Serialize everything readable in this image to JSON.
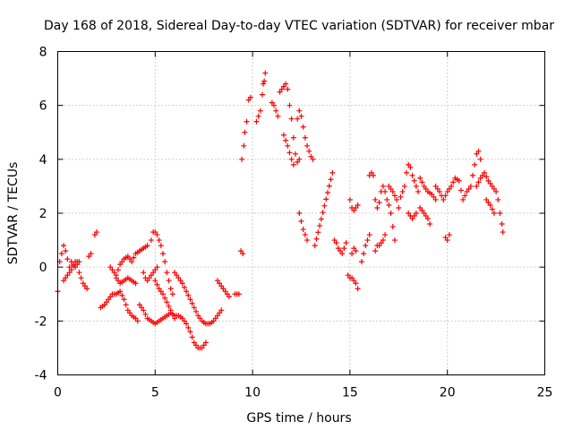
{
  "chart_data": {
    "type": "scatter",
    "title": "Day 168 of 2018, Sidereal Day-to-day VTEC variation (SDTVAR) for receiver mbar",
    "xlabel": "GPS time / hours",
    "ylabel": "SDTVAR / TECUs",
    "xlim": [
      0,
      25
    ],
    "ylim": [
      -4,
      8
    ],
    "xticks": [
      0,
      5,
      10,
      15,
      20,
      25
    ],
    "yticks": [
      -4,
      -2,
      0,
      2,
      4,
      6,
      8
    ],
    "grid": true,
    "marker": "+",
    "color": "#ff0000",
    "series": [
      {
        "name": "SDTVAR",
        "segments": [
          [
            [
              0.0,
              -0.9
            ],
            [
              0.1,
              0.2
            ],
            [
              0.2,
              0.5
            ],
            [
              0.3,
              0.8
            ],
            [
              0.4,
              0.6
            ],
            [
              0.5,
              0.3
            ],
            [
              0.6,
              0.0
            ],
            [
              0.7,
              0.2
            ],
            [
              0.8,
              0.1
            ],
            [
              0.9,
              0.0
            ],
            [
              1.0,
              0.1
            ],
            [
              1.1,
              -0.2
            ],
            [
              1.2,
              -0.4
            ],
            [
              1.3,
              -0.6
            ],
            [
              1.4,
              -0.7
            ],
            [
              1.5,
              -0.8
            ]
          ],
          [
            [
              0.3,
              -0.5
            ],
            [
              0.5,
              -0.3
            ],
            [
              0.7,
              -0.1
            ],
            [
              0.9,
              0.2
            ],
            [
              1.1,
              0.2
            ]
          ],
          [
            [
              1.6,
              0.4
            ],
            [
              1.7,
              0.5
            ]
          ],
          [
            [
              1.9,
              1.2
            ],
            [
              2.0,
              1.3
            ]
          ],
          [
            [
              2.2,
              -1.5
            ],
            [
              2.4,
              -1.4
            ],
            [
              2.6,
              -1.2
            ],
            [
              2.8,
              -1.0
            ],
            [
              3.0,
              -1.0
            ],
            [
              3.2,
              -0.9
            ],
            [
              3.4,
              -1.2
            ],
            [
              3.6,
              -1.6
            ],
            [
              3.8,
              -1.8
            ],
            [
              4.0,
              -1.9
            ],
            [
              4.1,
              -2.0
            ]
          ],
          [
            [
              2.7,
              0.0
            ],
            [
              2.9,
              -0.2
            ],
            [
              3.0,
              -0.4
            ],
            [
              3.2,
              -0.6
            ],
            [
              3.4,
              -0.5
            ],
            [
              3.6,
              -0.4
            ],
            [
              3.8,
              -0.5
            ],
            [
              4.0,
              -0.6
            ]
          ],
          [
            [
              3.0,
              -0.3
            ],
            [
              3.2,
              0.1
            ],
            [
              3.4,
              0.3
            ],
            [
              3.6,
              0.4
            ],
            [
              3.8,
              0.2
            ],
            [
              4.0,
              0.5
            ],
            [
              4.2,
              0.6
            ],
            [
              4.4,
              0.7
            ],
            [
              4.6,
              0.8
            ]
          ],
          [
            [
              4.4,
              -0.2
            ],
            [
              4.5,
              -0.4
            ],
            [
              4.6,
              -0.5
            ],
            [
              4.7,
              -0.4
            ],
            [
              4.8,
              -0.3
            ],
            [
              4.9,
              -0.2
            ],
            [
              5.0,
              -0.1
            ],
            [
              5.1,
              0.0
            ]
          ],
          [
            [
              4.8,
              1.0
            ],
            [
              4.9,
              1.3
            ],
            [
              5.0,
              1.3
            ],
            [
              5.1,
              1.2
            ],
            [
              5.2,
              1.0
            ],
            [
              5.3,
              0.8
            ],
            [
              5.4,
              0.5
            ],
            [
              5.5,
              0.2
            ],
            [
              5.6,
              -0.2
            ],
            [
              5.7,
              -0.5
            ],
            [
              5.8,
              -0.8
            ],
            [
              5.9,
              -1.0
            ]
          ],
          [
            [
              4.2,
              -1.4
            ],
            [
              4.4,
              -1.6
            ],
            [
              4.6,
              -1.9
            ],
            [
              4.8,
              -2.0
            ],
            [
              5.0,
              -2.1
            ],
            [
              5.2,
              -2.0
            ],
            [
              5.4,
              -1.9
            ],
            [
              5.6,
              -1.8
            ],
            [
              5.8,
              -1.7
            ],
            [
              6.0,
              -1.8
            ],
            [
              6.2,
              -1.8
            ],
            [
              6.4,
              -1.9
            ],
            [
              6.6,
              -2.1
            ],
            [
              6.8,
              -2.4
            ],
            [
              7.0,
              -2.8
            ],
            [
              7.2,
              -3.0
            ],
            [
              7.4,
              -3.0
            ],
            [
              7.6,
              -2.8
            ]
          ],
          [
            [
              5.0,
              -0.5
            ],
            [
              5.2,
              -0.8
            ],
            [
              5.4,
              -1.0
            ],
            [
              5.6,
              -1.3
            ],
            [
              5.8,
              -1.6
            ],
            [
              6.0,
              -1.9
            ]
          ],
          [
            [
              6.0,
              -0.2
            ],
            [
              6.2,
              -0.4
            ],
            [
              6.4,
              -0.6
            ],
            [
              6.6,
              -0.9
            ],
            [
              6.8,
              -1.2
            ],
            [
              7.0,
              -1.5
            ],
            [
              7.2,
              -1.8
            ],
            [
              7.4,
              -2.0
            ],
            [
              7.6,
              -2.1
            ],
            [
              7.8,
              -2.1
            ],
            [
              8.0,
              -2.0
            ],
            [
              8.2,
              -1.8
            ],
            [
              8.4,
              -1.6
            ]
          ],
          [
            [
              8.2,
              -0.5
            ],
            [
              8.4,
              -0.7
            ],
            [
              8.6,
              -0.9
            ],
            [
              8.8,
              -1.1
            ]
          ],
          [
            [
              9.1,
              -1.0
            ],
            [
              9.3,
              -1.0
            ]
          ],
          [
            [
              9.4,
              0.6
            ],
            [
              9.5,
              0.5
            ]
          ],
          [
            [
              9.45,
              4.0
            ],
            [
              9.55,
              4.5
            ],
            [
              9.6,
              5.0
            ],
            [
              9.7,
              5.4
            ],
            [
              9.8,
              6.2
            ],
            [
              9.9,
              6.3
            ]
          ],
          [
            [
              10.2,
              5.4
            ],
            [
              10.4,
              5.8
            ],
            [
              10.5,
              6.4
            ],
            [
              10.55,
              6.8
            ],
            [
              10.6,
              6.9
            ],
            [
              10.65,
              7.2
            ]
          ],
          [
            [
              11.0,
              6.1
            ],
            [
              11.1,
              6.0
            ],
            [
              11.2,
              5.8
            ],
            [
              11.3,
              5.6
            ]
          ],
          [
            [
              11.4,
              6.5
            ],
            [
              11.5,
              6.6
            ],
            [
              11.6,
              6.7
            ],
            [
              11.7,
              6.8
            ],
            [
              11.8,
              6.6
            ],
            [
              11.9,
              6.0
            ],
            [
              12.0,
              5.5
            ],
            [
              12.1,
              4.8
            ],
            [
              12.2,
              4.2
            ],
            [
              12.3,
              3.9
            ],
            [
              12.4,
              4.0
            ]
          ],
          [
            [
              11.6,
              4.9
            ],
            [
              11.8,
              4.5
            ],
            [
              12.0,
              4.0
            ],
            [
              12.1,
              3.8
            ]
          ],
          [
            [
              12.3,
              5.5
            ],
            [
              12.4,
              5.8
            ],
            [
              12.5,
              5.6
            ],
            [
              12.6,
              5.2
            ],
            [
              12.7,
              4.8
            ],
            [
              12.8,
              4.5
            ],
            [
              12.9,
              4.3
            ]
          ],
          [
            [
              13.0,
              4.1
            ],
            [
              13.1,
              4.0
            ]
          ],
          [
            [
              12.4,
              2.0
            ],
            [
              12.5,
              1.7
            ],
            [
              12.6,
              1.4
            ],
            [
              12.7,
              1.2
            ],
            [
              12.8,
              1.0
            ]
          ],
          [
            [
              13.2,
              0.8
            ],
            [
              14.1,
              3.5
            ]
          ],
          [
            [
              14.2,
              1.0
            ],
            [
              14.3,
              0.9
            ],
            [
              14.4,
              0.7
            ],
            [
              14.5,
              0.6
            ],
            [
              14.6,
              0.5
            ],
            [
              14.7,
              0.7
            ],
            [
              14.8,
              0.9
            ]
          ],
          [
            [
              14.9,
              -0.3
            ],
            [
              15.0,
              -0.4
            ],
            [
              15.1,
              -0.4
            ],
            [
              15.2,
              -0.5
            ],
            [
              15.3,
              -0.6
            ],
            [
              15.4,
              -0.8
            ]
          ],
          [
            [
              15.0,
              2.5
            ],
            [
              15.1,
              2.2
            ],
            [
              15.2,
              2.1
            ],
            [
              15.3,
              2.2
            ],
            [
              15.4,
              2.3
            ]
          ],
          [
            [
              15.1,
              0.5
            ],
            [
              15.2,
              0.7
            ],
            [
              15.3,
              0.6
            ]
          ],
          [
            [
              15.6,
              0.2
            ],
            [
              15.8,
              0.8
            ],
            [
              16.0,
              1.2
            ]
          ],
          [
            [
              16.0,
              3.4
            ],
            [
              16.1,
              3.5
            ],
            [
              16.2,
              3.4
            ],
            [
              16.3,
              2.5
            ],
            [
              16.4,
              2.2
            ],
            [
              16.5,
              2.4
            ],
            [
              16.6,
              2.8
            ],
            [
              16.7,
              3.0
            ],
            [
              16.8,
              2.8
            ],
            [
              16.9,
              2.5
            ],
            [
              17.0,
              2.3
            ],
            [
              17.1,
              2.0
            ],
            [
              17.2,
              1.5
            ],
            [
              17.3,
              1.0
            ]
          ],
          [
            [
              16.3,
              0.6
            ],
            [
              16.4,
              0.8
            ],
            [
              16.5,
              0.8
            ],
            [
              16.6,
              0.9
            ],
            [
              16.7,
              1.0
            ],
            [
              16.8,
              1.2
            ]
          ],
          [
            [
              17.0,
              3.0
            ],
            [
              17.2,
              2.8
            ],
            [
              17.4,
              2.5
            ],
            [
              17.5,
              2.2
            ],
            [
              17.6,
              2.6
            ],
            [
              17.8,
              3.0
            ],
            [
              17.9,
              3.5
            ],
            [
              18.0,
              3.8
            ],
            [
              18.1,
              3.7
            ],
            [
              18.2,
              3.4
            ],
            [
              18.4,
              3.0
            ],
            [
              18.5,
              2.8
            ]
          ],
          [
            [
              18.0,
              2.0
            ],
            [
              18.2,
              1.8
            ],
            [
              18.4,
              2.0
            ]
          ],
          [
            [
              18.6,
              3.3
            ],
            [
              18.8,
              3.0
            ],
            [
              19.0,
              2.8
            ],
            [
              19.2,
              2.7
            ],
            [
              19.4,
              2.5
            ]
          ],
          [
            [
              18.6,
              2.2
            ],
            [
              18.8,
              2.0
            ],
            [
              19.0,
              1.8
            ],
            [
              19.1,
              1.6
            ]
          ],
          [
            [
              19.4,
              3.0
            ],
            [
              19.6,
              2.8
            ],
            [
              19.8,
              2.5
            ],
            [
              20.0,
              2.8
            ],
            [
              20.2,
              3.0
            ],
            [
              20.4,
              3.3
            ],
            [
              20.6,
              3.2
            ],
            [
              20.8,
              2.5
            ],
            [
              21.0,
              2.8
            ],
            [
              21.2,
              3.0
            ],
            [
              21.4,
              3.8
            ],
            [
              21.5,
              4.2
            ],
            [
              21.6,
              4.3
            ],
            [
              21.7,
              4.0
            ]
          ],
          [
            [
              19.9,
              1.1
            ],
            [
              20.0,
              1.0
            ],
            [
              20.1,
              1.2
            ]
          ],
          [
            [
              21.5,
              3.0
            ],
            [
              21.7,
              3.3
            ],
            [
              21.9,
              3.5
            ],
            [
              22.1,
              3.2
            ],
            [
              22.3,
              3.0
            ],
            [
              22.5,
              2.8
            ],
            [
              22.6,
              2.5
            ],
            [
              22.7,
              2.0
            ],
            [
              22.8,
              1.6
            ],
            [
              22.85,
              1.3
            ]
          ],
          [
            [
              22.0,
              2.5
            ],
            [
              22.2,
              2.3
            ],
            [
              22.4,
              2.0
            ]
          ]
        ]
      }
    ]
  }
}
